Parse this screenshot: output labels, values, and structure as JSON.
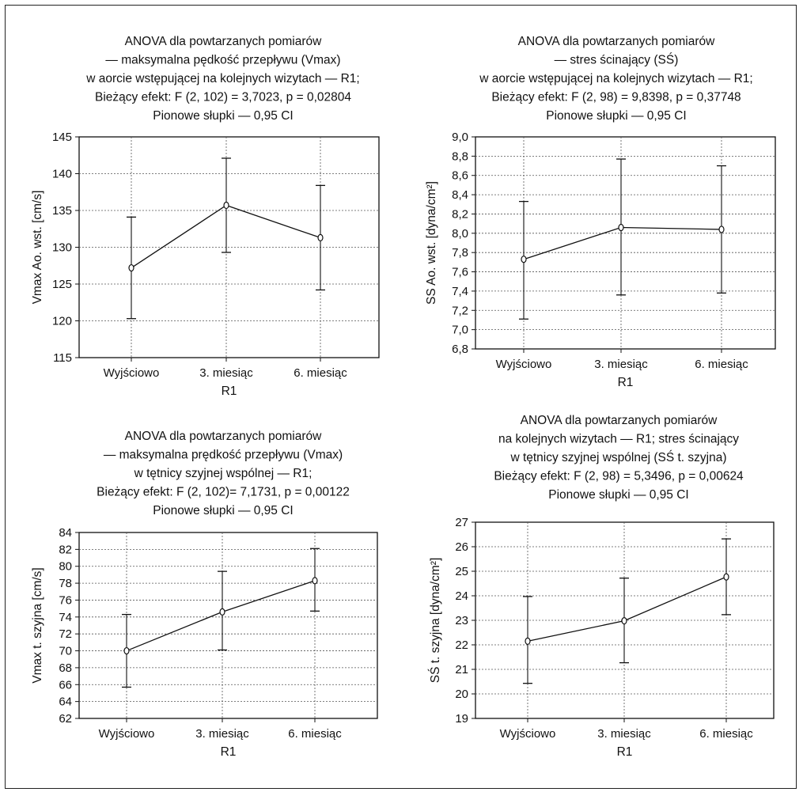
{
  "chart_data": [
    {
      "type": "line",
      "title_lines": [
        "ANOVA dla powtarzanych pomiarów",
        "— maksymalna pędkość przepływu (Vmax)",
        "w aorcie wstępującej na kolejnych wizytach — R1;",
        "Bieżący efekt: F (2, 102) = 3,7023, p = 0,02804",
        "Pionowe słupki — 0,95 CI"
      ],
      "categories": [
        "Wyjściowo",
        "3. miesiąc",
        "6. miesiąc"
      ],
      "xlabel": "R1",
      "ylabel": "Vmax Ao. wst. [cm/s]",
      "yticks": [
        "115",
        "120",
        "125",
        "130",
        "135",
        "140",
        "145"
      ],
      "ylim": [
        115,
        145
      ],
      "grid": true,
      "series": [
        {
          "values": [
            127.2,
            135.7,
            131.3
          ],
          "ci_low": [
            120.3,
            129.3,
            124.2
          ],
          "ci_high": [
            134.1,
            142.1,
            138.4
          ]
        }
      ]
    },
    {
      "type": "line",
      "title_lines": [
        "ANOVA dla powtarzanych pomiarów",
        "— stres ścinający  (SŚ)",
        "w  aorcie wstępującej na kolejnych wizytach — R1;",
        "Bieżący efekt: F (2, 98) = 9,8398, p = 0,37748",
        "Pionowe słupki — 0,95 CI"
      ],
      "categories": [
        "Wyjściowo",
        "3. miesiąc",
        "6. miesiąc"
      ],
      "xlabel": "R1",
      "ylabel": "SS Ao. wst. [dyna/cm²]",
      "yticks": [
        "6,8",
        "7,0",
        "7,2",
        "7,4",
        "7,6",
        "7,8",
        "8,0",
        "8,2",
        "8,4",
        "8,6",
        "8,8",
        "9,0"
      ],
      "ylim": [
        6.8,
        9.0
      ],
      "grid": true,
      "series": [
        {
          "values": [
            7.73,
            8.06,
            8.04
          ],
          "ci_low": [
            7.11,
            7.36,
            7.38
          ],
          "ci_high": [
            8.33,
            8.77,
            8.7
          ]
        }
      ]
    },
    {
      "type": "line",
      "title_lines": [
        "ANOVA dla powtarzanych pomiarów",
        "— maksymalna prędkość przepływu (Vmax)",
        "w tętnicy szyjnej wspólnej — R1;",
        "Bieżący efekt: F (2, 102)= 7,1731, p = 0,00122",
        "Pionowe słupki — 0,95 CI"
      ],
      "categories": [
        "Wyjściowo",
        "3. miesiąc",
        "6. miesiąc"
      ],
      "xlabel": "R1",
      "ylabel": "Vmax t. szyjna  [cm/s]",
      "yticks": [
        "62",
        "64",
        "66",
        "68",
        "70",
        "72",
        "74",
        "76",
        "78",
        "80",
        "82",
        "84"
      ],
      "ylim": [
        62,
        84
      ],
      "grid": true,
      "series": [
        {
          "values": [
            70.0,
            74.6,
            78.3
          ],
          "ci_low": [
            65.7,
            70.1,
            74.7
          ],
          "ci_high": [
            74.3,
            79.4,
            82.1
          ]
        }
      ]
    },
    {
      "type": "line",
      "title_lines": [
        "ANOVA dla powtarzanych pomiarów",
        "na kolejnych wizytach — R1; stres ścinający",
        "w tętnicy szyjnej wspólnej (SŚ t. szyjna)",
        "Bieżący efekt: F (2, 98) = 5,3496, p = 0,00624",
        "Pionowe słupki — 0,95 CI"
      ],
      "categories": [
        "Wyjściowo",
        "3. miesiąc",
        "6. miesiąc"
      ],
      "xlabel": "R1",
      "ylabel": "SŚ t. szyjna [dyna/cm²]",
      "yticks": [
        "19",
        "20",
        "21",
        "22",
        "23",
        "24",
        "25",
        "26",
        "27"
      ],
      "ylim": [
        19,
        27
      ],
      "grid": true,
      "series": [
        {
          "values": [
            22.15,
            22.98,
            24.77
          ],
          "ci_low": [
            20.43,
            21.27,
            23.23
          ],
          "ci_high": [
            23.97,
            24.72,
            26.32
          ]
        }
      ]
    }
  ]
}
